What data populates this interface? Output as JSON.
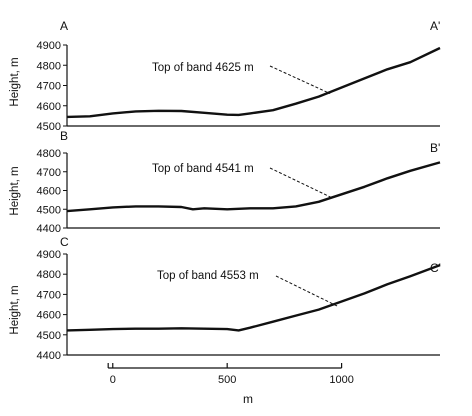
{
  "chart_data": [
    {
      "type": "line",
      "left_label": "A",
      "right_label": "A'",
      "ylabel": "Height, m",
      "ylim": [
        4500,
        4900
      ],
      "yticks": [
        4500,
        4600,
        4700,
        4800,
        4900
      ],
      "xlim": [
        -200,
        1430
      ],
      "annotation": {
        "text": "Top of band 4625 m",
        "x": 950,
        "y": 4660
      },
      "series": [
        {
          "x": [
            -200,
            -100,
            0,
            100,
            200,
            300,
            400,
            500,
            550,
            600,
            700,
            800,
            900,
            1000,
            1100,
            1200,
            1300,
            1430
          ],
          "y": [
            4545,
            4548,
            4562,
            4572,
            4575,
            4574,
            4565,
            4556,
            4555,
            4562,
            4578,
            4610,
            4645,
            4690,
            4735,
            4780,
            4815,
            4885
          ]
        }
      ]
    },
    {
      "type": "line",
      "left_label": "B",
      "right_label": "B'",
      "ylabel": "Height, m",
      "ylim": [
        4400,
        4800
      ],
      "yticks": [
        4400,
        4500,
        4600,
        4700,
        4800
      ],
      "xlim": [
        -200,
        1430
      ],
      "annotation": {
        "text": "Top of band 4541 m",
        "x": 960,
        "y": 4560
      },
      "series": [
        {
          "x": [
            -200,
            -100,
            0,
            100,
            200,
            300,
            350,
            400,
            500,
            600,
            700,
            800,
            900,
            1000,
            1100,
            1200,
            1300,
            1430
          ],
          "y": [
            4490,
            4500,
            4510,
            4515,
            4515,
            4512,
            4500,
            4505,
            4500,
            4505,
            4505,
            4515,
            4540,
            4580,
            4620,
            4665,
            4705,
            4750
          ]
        }
      ]
    },
    {
      "type": "line",
      "left_label": "C",
      "right_label": "C'",
      "ylabel": "Height, m",
      "ylim": [
        4400,
        4900
      ],
      "yticks": [
        4400,
        4500,
        4600,
        4700,
        4800,
        4900
      ],
      "xlim": [
        -200,
        1430
      ],
      "annotation": {
        "text": "Top of band 4553 m",
        "x": 985,
        "y": 4640
      },
      "series": [
        {
          "x": [
            -200,
            -100,
            0,
            100,
            200,
            300,
            400,
            500,
            550,
            600,
            700,
            800,
            900,
            1000,
            1100,
            1200,
            1300,
            1430
          ],
          "y": [
            4522,
            4525,
            4528,
            4530,
            4530,
            4532,
            4530,
            4528,
            4522,
            4535,
            4565,
            4595,
            4625,
            4665,
            4705,
            4750,
            4790,
            4845
          ]
        }
      ]
    }
  ],
  "scale_bar": {
    "ticks": [
      0,
      500,
      1000
    ],
    "start": -20,
    "end": 1000,
    "unit": "m"
  }
}
